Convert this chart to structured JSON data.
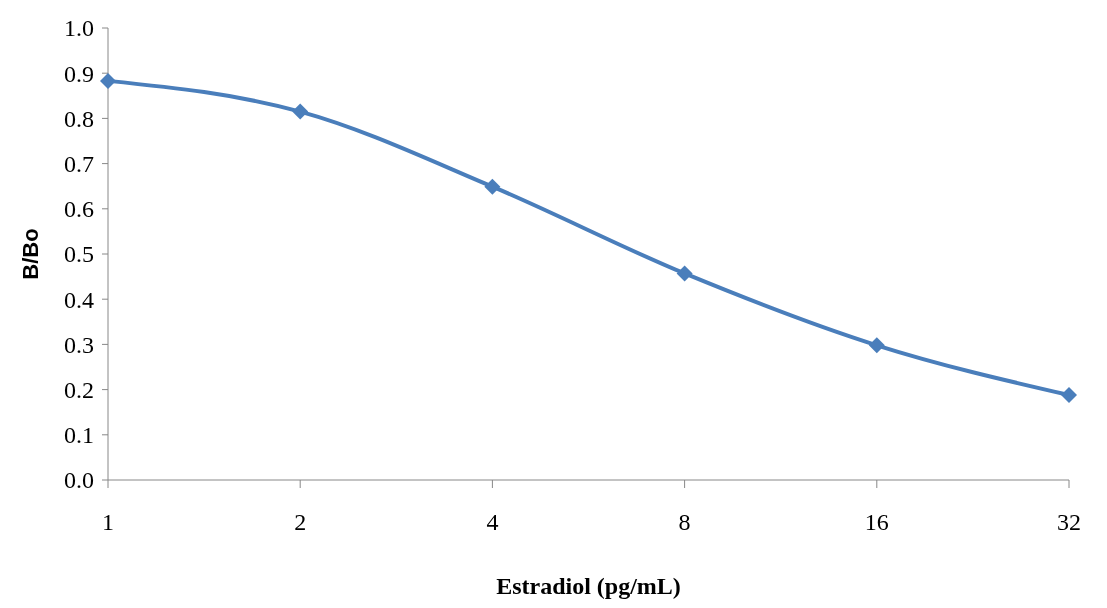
{
  "chart_data": {
    "type": "line",
    "xlabel": "Estradiol (pg/mL)",
    "ylabel": "B/Bo",
    "categories": [
      "1",
      "2",
      "4",
      "8",
      "16",
      "32"
    ],
    "series": [
      {
        "color": "#4a7ebb",
        "values": [
          0.883,
          0.815,
          0.649,
          0.457,
          0.298,
          0.188
        ]
      }
    ],
    "ylim": [
      0,
      1
    ],
    "yticks": [
      {
        "value": 0,
        "label": "0.0"
      },
      0.1,
      0.2,
      0.3,
      0.4,
      0.5,
      0.6,
      0.7,
      0.8,
      0.9,
      {
        "value": 1,
        "label": "1.0"
      }
    ],
    "marker": "diamond",
    "line_style": "solid",
    "grid": false
  }
}
